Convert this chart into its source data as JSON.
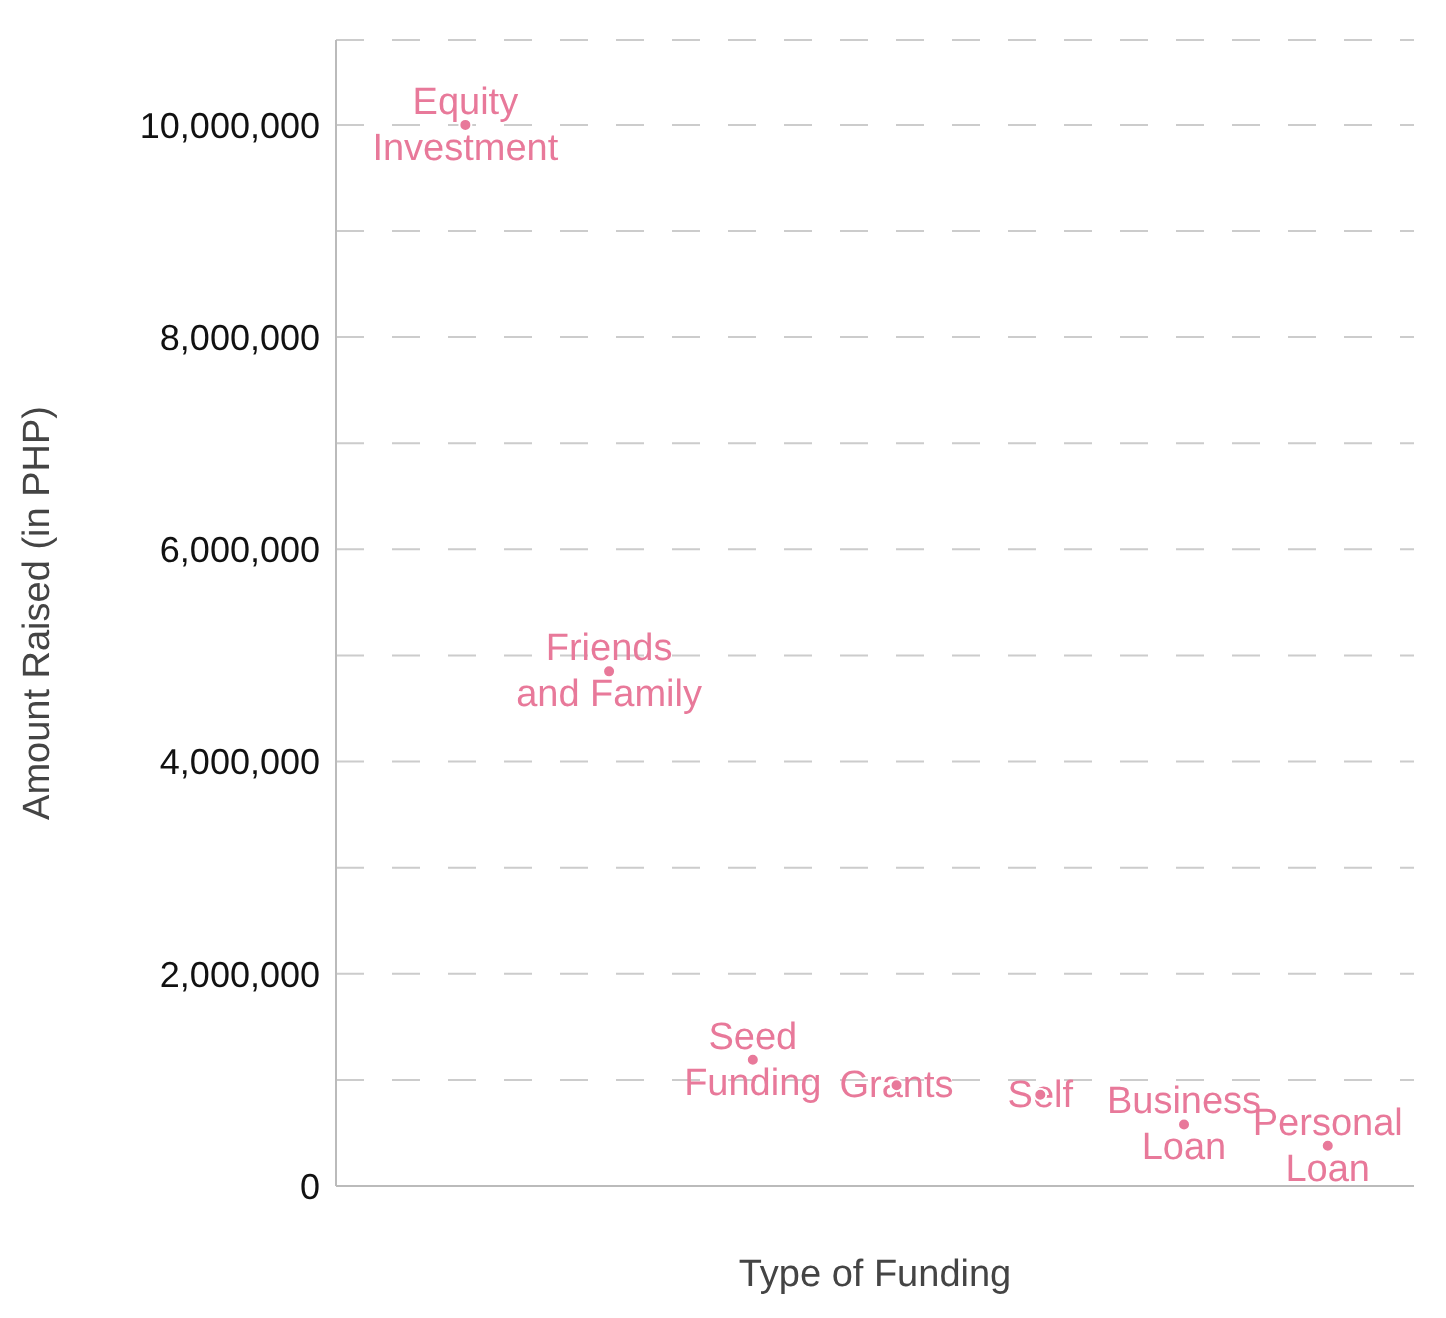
{
  "chart_data": {
    "type": "scatter",
    "xlabel": "Type of Funding",
    "ylabel": "Amount Raised (in PHP)",
    "categories": [
      "Equity Investment",
      "Friends and Family",
      "Seed Funding",
      "Grants",
      "Self",
      "Business Loan",
      "Personal Loan"
    ],
    "values": [
      10000000,
      4850000,
      1190000,
      950000,
      860000,
      580000,
      380000
    ],
    "color": "#e8799a",
    "ylim": [
      0,
      10800000
    ],
    "yticks": [
      0,
      {
        "value": 1000000,
        "label": null
      },
      {
        "value": 2000000,
        "label": "2,000,000"
      },
      {
        "value": 3000000,
        "label": null
      },
      {
        "value": 4000000,
        "label": "4,000,000"
      },
      {
        "value": 5000000,
        "label": null
      },
      {
        "value": 6000000,
        "label": "6,000,000"
      },
      {
        "value": 7000000,
        "label": null
      },
      {
        "value": 8000000,
        "label": "8,000,000"
      },
      {
        "value": 9000000,
        "label": null
      },
      {
        "value": 10000000,
        "label": "10,000,000"
      }
    ],
    "grid": "y",
    "tick_labels": "y"
  }
}
